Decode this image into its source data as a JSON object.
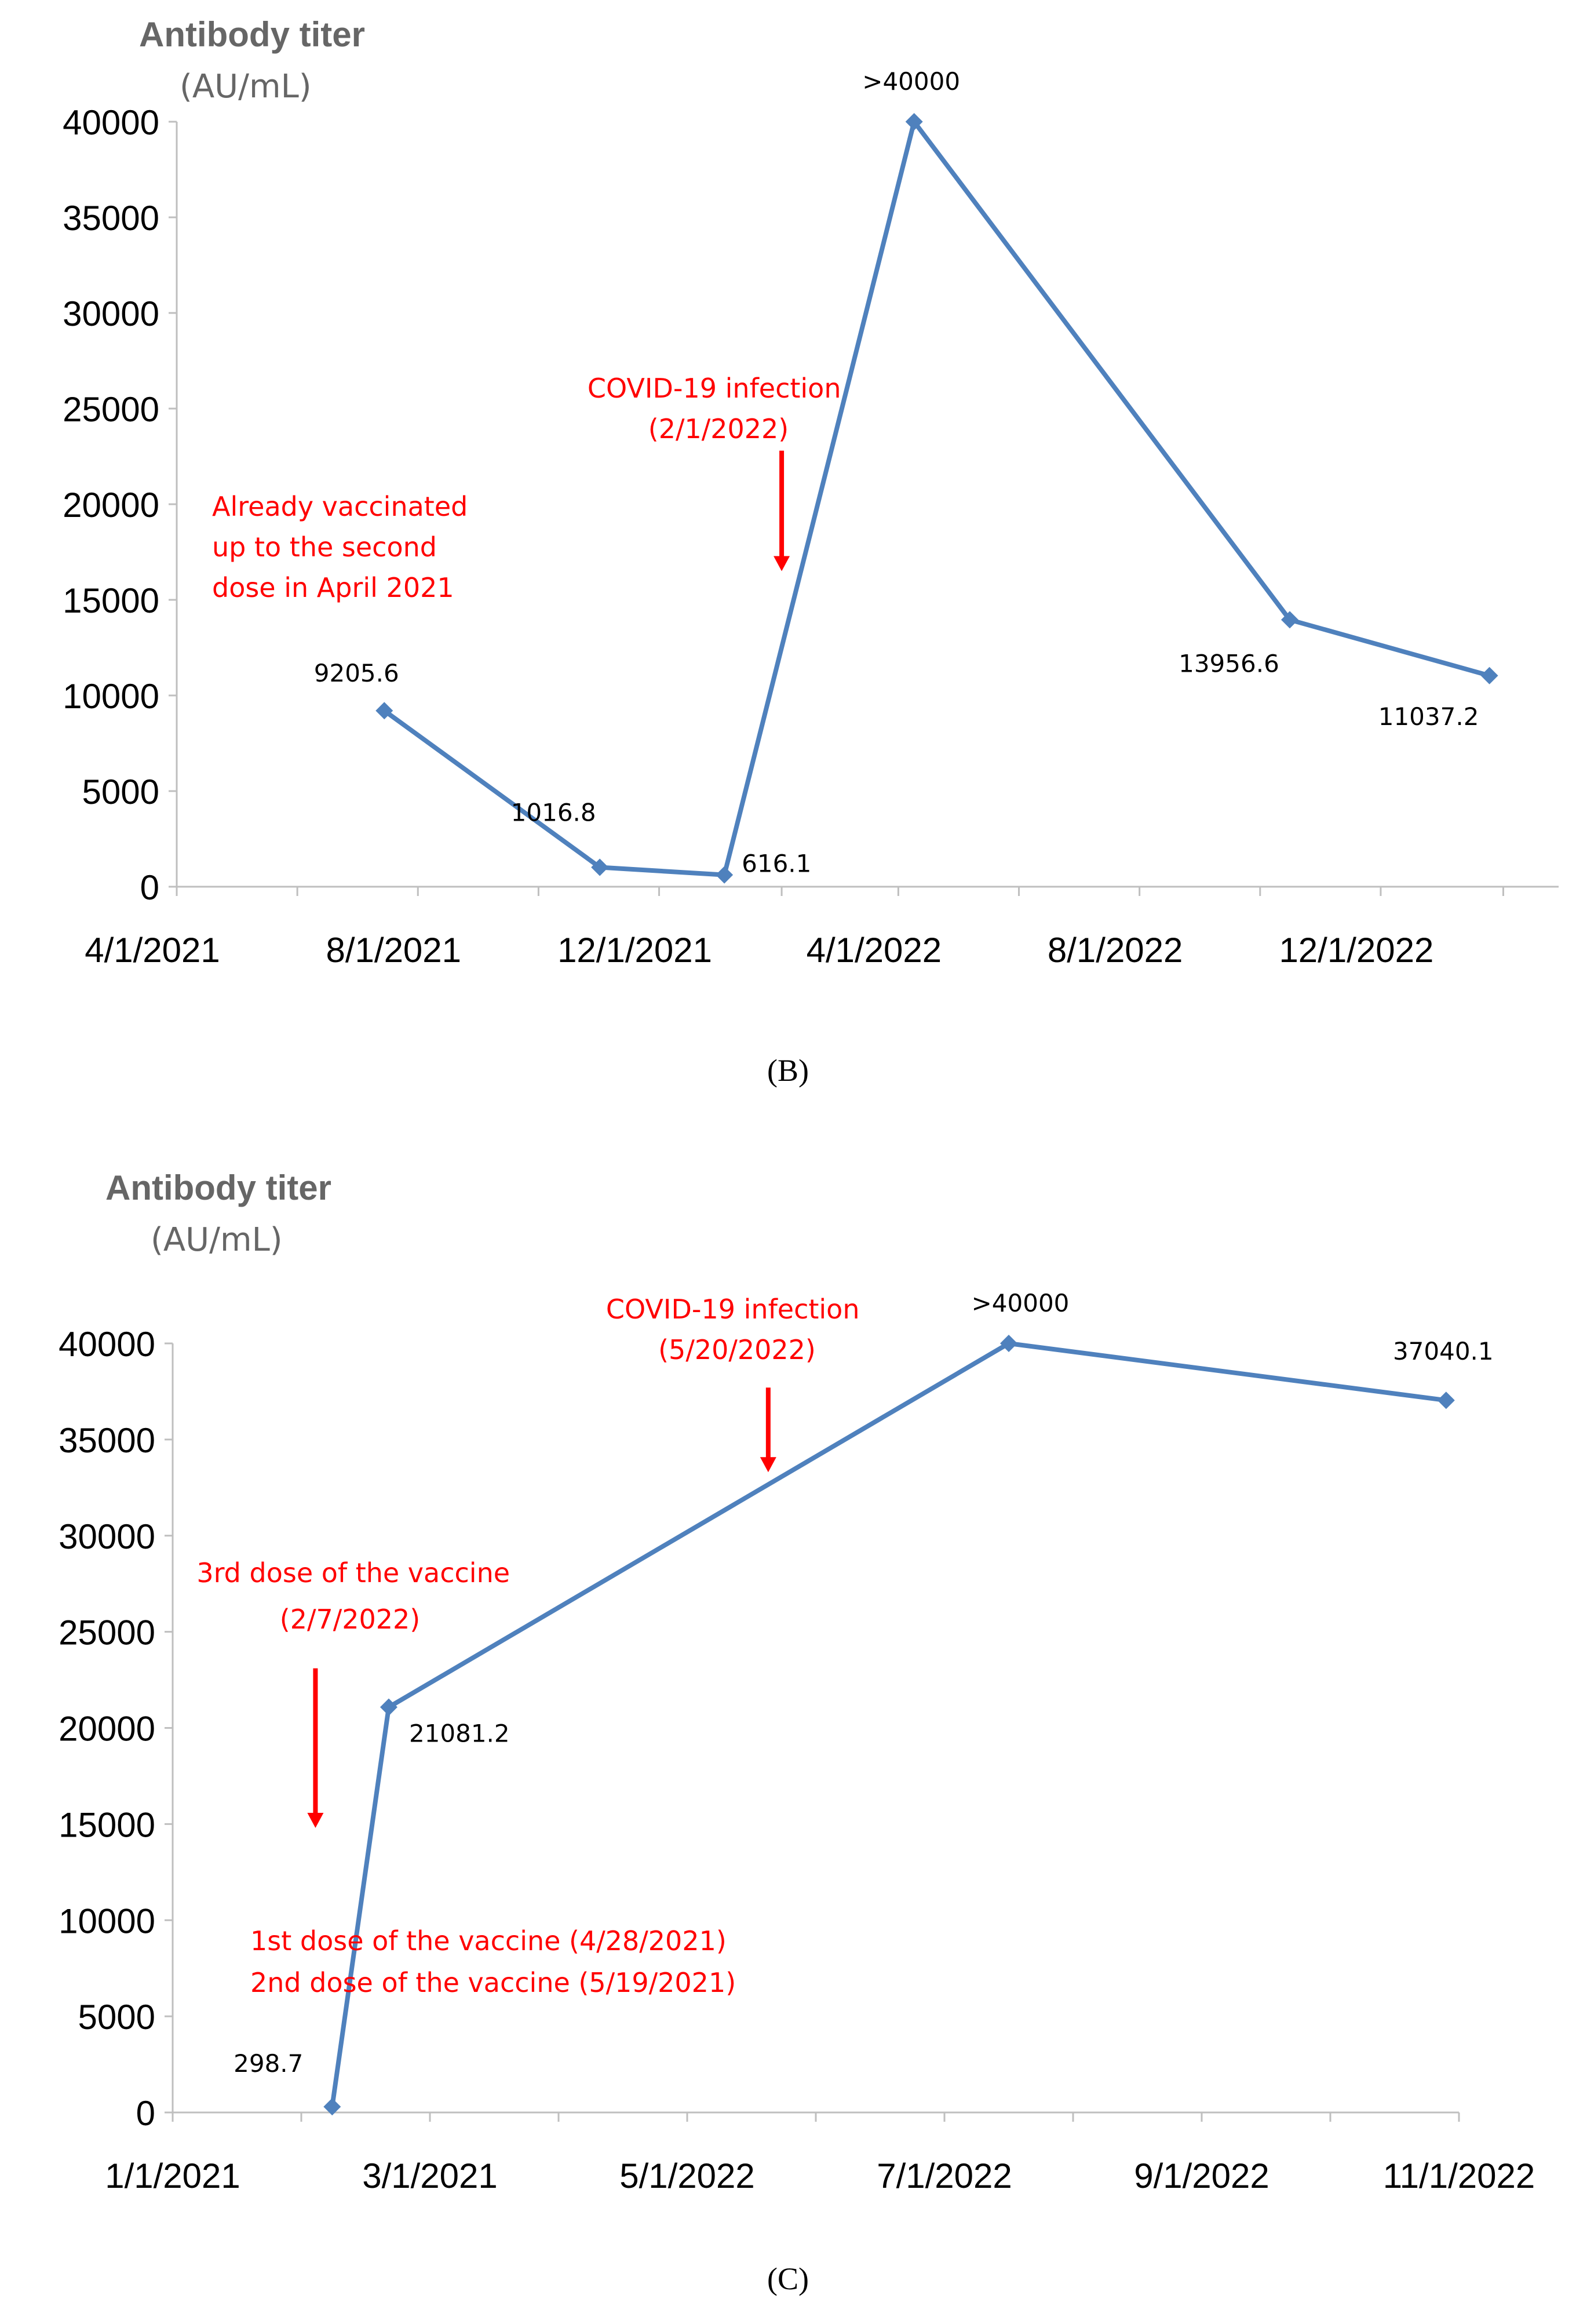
{
  "charts": [
    {
      "panel_label": "(B)",
      "colors": {
        "series": "#4f81bd",
        "annotation": "#ff0000",
        "axis": "#bfbfbf"
      },
      "chart_data": {
        "type": "line",
        "ylabel": "Antibody titer",
        "yunit": "(AU/mL)",
        "ylim": [
          0,
          40000
        ],
        "yticks": [
          0,
          5000,
          10000,
          15000,
          20000,
          25000,
          30000,
          35000,
          40000
        ],
        "xlim": [
          "2021-04-01",
          "2023-03-01"
        ],
        "xtick_dates": [
          "2021-04-01",
          "2021-06-01",
          "2021-08-01",
          "2021-10-01",
          "2021-12-01",
          "2022-02-01",
          "2022-04-01",
          "2022-06-01",
          "2022-08-01",
          "2022-10-01",
          "2022-12-01",
          "2023-02-01"
        ],
        "xlabel_dates": [
          "2021-04-01",
          "2021-08-01",
          "2021-12-01",
          "2022-04-01",
          "2022-08-01",
          "2022-12-01"
        ],
        "xticklabels": [
          "4/1/2021",
          "8/1/2021",
          "12/1/2021",
          "4/1/2022",
          "8/1/2022",
          "12/1/2022"
        ],
        "series": [
          {
            "x": [
              "2021-07-15",
              "2021-11-01",
              "2022-01-03",
              "2022-04-09",
              "2022-10-16",
              "2023-01-25"
            ],
            "values": [
              9205.6,
              1016.8,
              616.1,
              40000,
              13956.6,
              11037.2
            ],
            "labels": [
              "9205.6",
              "1016.8",
              "616.1",
              ">40000",
              "13956.6",
              "11037.2"
            ]
          }
        ],
        "annotations": [
          {
            "lines": [
              "Already vaccinated",
              "up to the second",
              "dose in April 2021"
            ]
          },
          {
            "lines": [
              "COVID-19 infection",
              "(2/1/2022)"
            ],
            "arrow_x": "2022-02-01",
            "arrow_from": 22800,
            "arrow_to": 16500
          }
        ]
      }
    },
    {
      "panel_label": "(C)",
      "colors": {
        "series": "#4f81bd",
        "annotation": "#ff0000",
        "axis": "#bfbfbf"
      },
      "chart_data": {
        "type": "line",
        "ylabel": "Antibody titer",
        "yunit": "(AU/mL)",
        "ylim": [
          0,
          40000
        ],
        "yticks": [
          0,
          5000,
          10000,
          15000,
          20000,
          25000,
          30000,
          35000,
          40000
        ],
        "xticklabels": [
          "1/1/2021",
          "3/1/2021",
          "5/1/2022",
          "7/1/2022",
          "9/1/2022",
          "11/1/2022"
        ],
        "series": [
          {
            "x": [
              1.24,
              1.68,
              6.5,
              9.9
            ],
            "values": [
              298.7,
              21081.2,
              40000,
              37040.1
            ],
            "labels": [
              "298.7",
              "21081.2",
              ">40000",
              "37040.1"
            ]
          }
        ],
        "annotations": [
          {
            "lines": [
              "COVID-19 infection",
              "(5/20/2022)"
            ],
            "arrow_x": 4.63,
            "arrow_from": 37700,
            "arrow_to": 33300
          },
          {
            "lines": [
              "3rd dose of the vaccine",
              "(2/7/2022)"
            ],
            "arrow_x": 1.11,
            "arrow_from": 23100,
            "arrow_to": 14800
          },
          {
            "lines": [
              "1st dose of the vaccine (4/28/2021)",
              "2nd dose of the vaccine (5/19/2021)"
            ]
          }
        ]
      }
    }
  ]
}
